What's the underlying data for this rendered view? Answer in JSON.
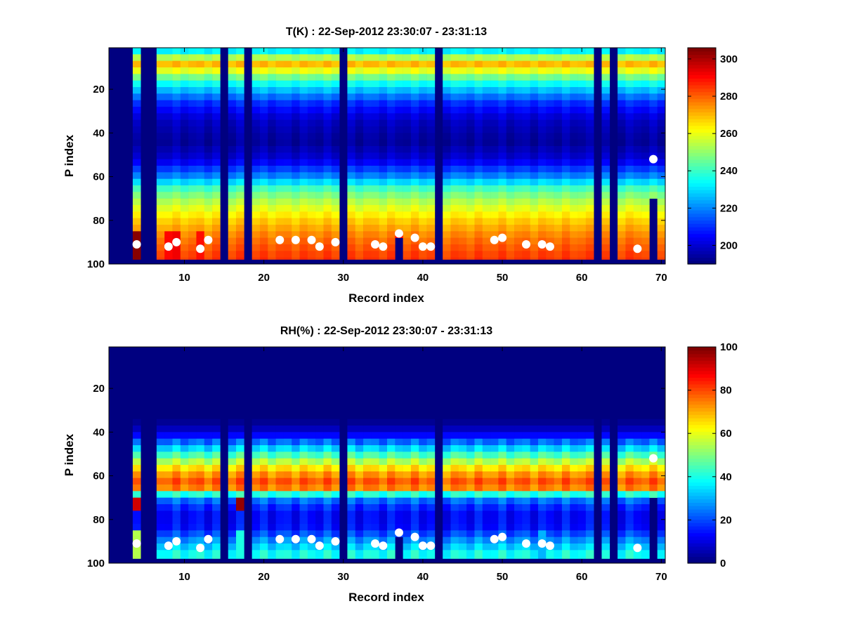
{
  "chart_data": [
    {
      "type": "heatmap",
      "title": "T(K) : 22-Sep-2012 23:30:07 - 23:31:13",
      "xlabel": "Record index",
      "ylabel": "P index",
      "xlim": [
        0.5,
        70.5
      ],
      "ylim": [
        1,
        100
      ],
      "y_reversed": true,
      "xticks": [
        10,
        20,
        30,
        40,
        50,
        60,
        70
      ],
      "yticks": [
        20,
        40,
        60,
        80,
        100
      ],
      "colormap": "jet",
      "colorbar": {
        "min": 190,
        "max": 306,
        "ticks": [
          200,
          220,
          240,
          260,
          280,
          300
        ]
      },
      "profile_stops": [
        [
          1,
          222
        ],
        [
          5,
          250
        ],
        [
          8,
          272
        ],
        [
          11,
          262
        ],
        [
          17,
          236
        ],
        [
          26,
          210
        ],
        [
          34,
          198
        ],
        [
          44,
          193
        ],
        [
          52,
          200
        ],
        [
          60,
          220
        ],
        [
          66,
          243
        ],
        [
          72,
          255
        ],
        [
          80,
          268
        ],
        [
          88,
          278
        ],
        [
          95,
          284
        ],
        [
          100,
          286
        ]
      ],
      "missing_records": [
        1,
        2,
        3,
        5,
        6,
        15,
        18,
        30,
        42,
        62,
        64
      ],
      "highlight_records": [
        [
          4,
          305
        ],
        [
          8,
          291
        ],
        [
          9,
          293
        ],
        [
          12,
          290
        ],
        [
          37,
          292
        ]
      ],
      "truncated_records": [
        [
          3,
          78
        ],
        [
          37,
          86
        ],
        [
          69,
          70
        ]
      ],
      "surface_points": {
        "x": [
          4,
          8,
          9,
          12,
          13,
          22,
          24,
          26,
          27,
          29,
          34,
          35,
          37,
          39,
          40,
          41,
          49,
          50,
          53,
          55,
          56,
          67,
          69
        ],
        "y": [
          91,
          92,
          90,
          93,
          89,
          89,
          89,
          89,
          92,
          90,
          91,
          92,
          86,
          88,
          92,
          92,
          89,
          88,
          91,
          91,
          92,
          93,
          52
        ]
      }
    },
    {
      "type": "heatmap",
      "title": "RH(%) : 22-Sep-2012 23:30:07 - 23:31:13",
      "xlabel": "Record index",
      "ylabel": "P index",
      "xlim": [
        0.5,
        70.5
      ],
      "ylim": [
        1,
        100
      ],
      "y_reversed": true,
      "xticks": [
        10,
        20,
        30,
        40,
        50,
        60,
        70
      ],
      "yticks": [
        20,
        40,
        60,
        80,
        100
      ],
      "colormap": "jet",
      "colorbar": {
        "min": 0,
        "max": 100,
        "ticks": [
          0,
          20,
          40,
          60,
          80,
          100
        ]
      },
      "profile_stops": [
        [
          1,
          0
        ],
        [
          34,
          0
        ],
        [
          40,
          8
        ],
        [
          46,
          28
        ],
        [
          52,
          50
        ],
        [
          58,
          70
        ],
        [
          63,
          80
        ],
        [
          66,
          74
        ],
        [
          68,
          44
        ],
        [
          72,
          20
        ],
        [
          78,
          12
        ],
        [
          84,
          14
        ],
        [
          90,
          28
        ],
        [
          96,
          40
        ],
        [
          100,
          40
        ]
      ],
      "missing_records": [
        1,
        2,
        3,
        5,
        6,
        15,
        18,
        30,
        42,
        62,
        64
      ],
      "highlight_records": [
        [
          17,
          40
        ],
        [
          4,
          55
        ],
        [
          55,
          30
        ]
      ],
      "truncated_records": [
        [
          3,
          78
        ],
        [
          37,
          86
        ],
        [
          69,
          70
        ]
      ],
      "surface_points": {
        "x": [
          4,
          8,
          9,
          12,
          13,
          22,
          24,
          26,
          27,
          29,
          34,
          35,
          37,
          39,
          40,
          41,
          49,
          50,
          53,
          55,
          56,
          67,
          69
        ],
        "y": [
          91,
          92,
          90,
          93,
          89,
          89,
          89,
          89,
          92,
          90,
          91,
          92,
          86,
          88,
          92,
          92,
          89,
          88,
          91,
          91,
          92,
          93,
          52
        ]
      }
    }
  ]
}
